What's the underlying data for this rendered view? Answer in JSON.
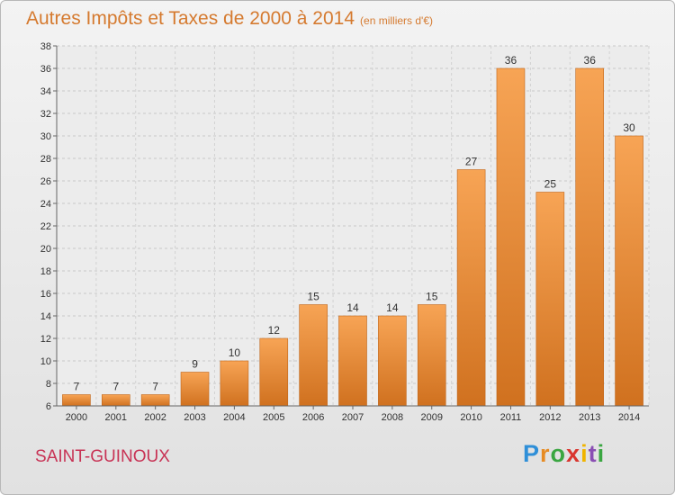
{
  "header": {
    "title": "Autres Impôts et Taxes de 2000 à 2014",
    "unit": "(en milliers d'€)"
  },
  "footer": {
    "place": "SAINT-GUINOUX",
    "logo": [
      "P",
      "r",
      "o",
      "x",
      "i",
      "t",
      "i"
    ]
  },
  "colors": {
    "bar": "#f0913a",
    "bar_dark": "#cc6a18",
    "title": "#d57a2f",
    "place": "#c83355"
  },
  "chart_data": {
    "type": "bar",
    "title": "Autres Impôts et Taxes de 2000 à 2014",
    "xlabel": "",
    "ylabel": "",
    "categories": [
      "2000",
      "2001",
      "2002",
      "2003",
      "2004",
      "2005",
      "2006",
      "2007",
      "2008",
      "2009",
      "2010",
      "2011",
      "2012",
      "2013",
      "2014"
    ],
    "values": [
      7,
      7,
      7,
      9,
      10,
      12,
      15,
      14,
      14,
      15,
      27,
      36,
      25,
      36,
      30
    ],
    "ylim": [
      6,
      38
    ],
    "yticks": [
      6,
      8,
      10,
      12,
      14,
      16,
      18,
      20,
      22,
      24,
      26,
      28,
      30,
      32,
      34,
      36,
      38
    ],
    "grid": true,
    "legend": "none"
  }
}
